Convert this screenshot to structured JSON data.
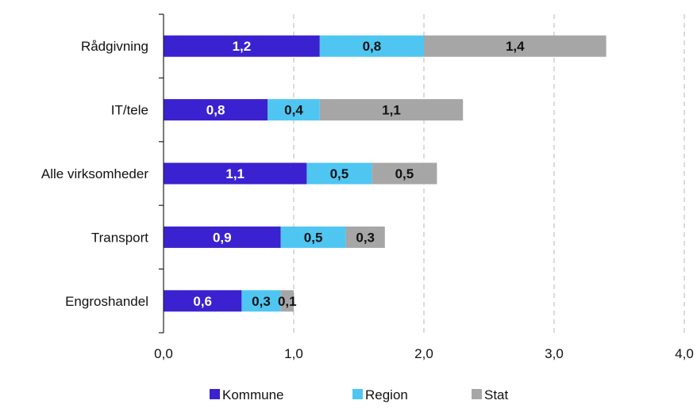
{
  "chart_data": {
    "type": "bar",
    "orientation": "horizontal",
    "stacked": true,
    "categories": [
      "Rådgivning",
      "IT/tele",
      "Alle virksomheder",
      "Transport",
      "Engroshandel"
    ],
    "series": [
      {
        "name": "Kommune",
        "values": [
          1.2,
          0.8,
          1.1,
          0.9,
          0.6
        ],
        "labels": [
          "1,2",
          "0,8",
          "1,1",
          "0,9",
          "0,6"
        ],
        "color": "#3a22d0",
        "label_color": "#ffffff"
      },
      {
        "name": "Region",
        "values": [
          0.8,
          0.4,
          0.5,
          0.5,
          0.3
        ],
        "labels": [
          "0,8",
          "0,4",
          "0,5",
          "0,5",
          "0,3"
        ],
        "color": "#4fc6f2",
        "label_color": "#111111"
      },
      {
        "name": "Stat",
        "values": [
          1.4,
          1.1,
          0.5,
          0.3,
          0.1
        ],
        "labels": [
          "1,4",
          "1,1",
          "0,5",
          "0,3",
          "0,1"
        ],
        "color": "#a6a6a6",
        "label_color": "#111111"
      }
    ],
    "xlim": [
      0,
      4
    ],
    "xticks": [
      0,
      1,
      2,
      3,
      4
    ],
    "xtick_labels": [
      "0,0",
      "1,0",
      "2,0",
      "3,0",
      "4,0"
    ],
    "grid": "vertical dashed",
    "legend_position": "bottom",
    "title": "",
    "xlabel": "",
    "ylabel": ""
  }
}
